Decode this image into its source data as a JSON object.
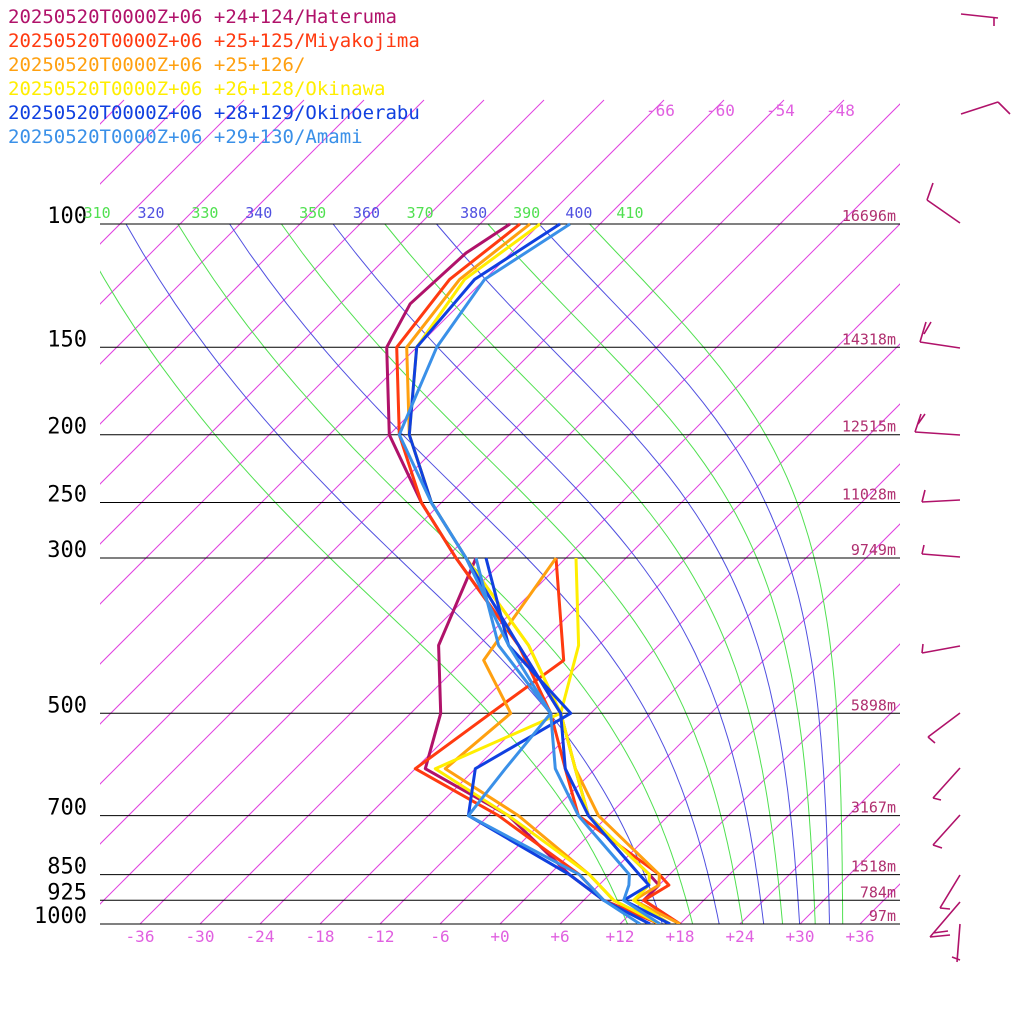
{
  "chart_data": {
    "type": "line",
    "pressure_levels": [
      100,
      150,
      200,
      250,
      300,
      500,
      700,
      850,
      925,
      1000
    ],
    "pressure_labels": [
      "100",
      "150",
      "200",
      "250",
      "300",
      "500",
      "700",
      "850",
      "925",
      "1000"
    ],
    "height_labels": [
      "16696m",
      "14318m",
      "12515m",
      "11028m",
      "9749m",
      "5898m",
      "3167m",
      "1518m",
      "784m",
      "97m"
    ],
    "x_tick_labels": [
      "-36",
      "-30",
      "-24",
      "-18",
      "-12",
      "-6",
      "+0",
      "+6",
      "+12",
      "+18",
      "+24",
      "+30",
      "+36"
    ],
    "x_ticks": [
      -36,
      -30,
      -24,
      -18,
      -12,
      -6,
      0,
      6,
      12,
      18,
      24,
      30,
      36
    ],
    "isotherm_labels": [
      "-66",
      "-60",
      "-54",
      "-48"
    ],
    "isotherms_top": [
      -66,
      -60,
      -54,
      -48
    ],
    "theta_e_labels": [
      "310",
      "320",
      "330",
      "340",
      "350",
      "360",
      "370",
      "380",
      "390",
      "400",
      "410"
    ],
    "theta_e": [
      310,
      320,
      330,
      340,
      350,
      360,
      370,
      380,
      390,
      400,
      410
    ],
    "xlim": [
      -40,
      40
    ],
    "y_scale": "log pressure",
    "series": [
      {
        "name": "20250520T0000Z+06 +24+124/Hateruma",
        "color": "#b0126a",
        "temperature": [
          [
            100,
            -69
          ],
          [
            110,
            -70.5
          ],
          [
            130,
            -71
          ],
          [
            150,
            -69
          ],
          [
            200,
            -60
          ],
          [
            250,
            -50
          ],
          [
            300,
            -41
          ],
          [
            400,
            -26
          ],
          [
            500,
            -15
          ],
          [
            600,
            -8
          ],
          [
            700,
            -2
          ],
          [
            850,
            10
          ],
          [
            880,
            12
          ],
          [
            925,
            12
          ],
          [
            1000,
            18
          ]
        ],
        "dewpoint": [
          [
            300,
            -39
          ],
          [
            400,
            -34
          ],
          [
            500,
            -27
          ],
          [
            600,
            -23
          ],
          [
            700,
            -10
          ],
          [
            850,
            2
          ],
          [
            925,
            8
          ],
          [
            1000,
            16
          ]
        ]
      },
      {
        "name": "20250520T0000Z+06 +25+125/Miyakojima",
        "color": "#ff3a10",
        "temperature": [
          [
            100,
            -68
          ],
          [
            120,
            -69.5
          ],
          [
            150,
            -68
          ],
          [
            200,
            -59
          ],
          [
            250,
            -50
          ],
          [
            300,
            -41
          ],
          [
            400,
            -26
          ],
          [
            500,
            -16
          ],
          [
            600,
            -9
          ],
          [
            700,
            -3
          ],
          [
            850,
            11
          ],
          [
            880,
            13
          ],
          [
            925,
            12
          ],
          [
            1000,
            18
          ]
        ],
        "dewpoint": [
          [
            300,
            -31
          ],
          [
            420,
            -20
          ],
          [
            500,
            -22
          ],
          [
            600,
            -24
          ],
          [
            700,
            -11
          ],
          [
            850,
            3
          ],
          [
            925,
            8
          ],
          [
            1000,
            16
          ]
        ]
      },
      {
        "name": "20250520T0000Z+06 +25+126/",
        "color": "#ffa010",
        "temperature": [
          [
            100,
            -67
          ],
          [
            120,
            -68.5
          ],
          [
            150,
            -67
          ],
          [
            200,
            -58
          ],
          [
            250,
            -49
          ],
          [
            300,
            -40
          ],
          [
            400,
            -25
          ],
          [
            500,
            -15
          ],
          [
            600,
            -8
          ],
          [
            700,
            -1
          ],
          [
            850,
            11
          ],
          [
            880,
            12
          ],
          [
            925,
            11
          ],
          [
            1000,
            18
          ]
        ],
        "dewpoint": [
          [
            300,
            -31
          ],
          [
            420,
            -28
          ],
          [
            500,
            -20
          ],
          [
            600,
            -21
          ],
          [
            700,
            -9
          ],
          [
            850,
            4
          ],
          [
            925,
            9
          ],
          [
            1000,
            16
          ]
        ]
      },
      {
        "name": "20250520T0000Z+06 +26+128/Okinawa",
        "color": "#ffee00",
        "temperature": [
          [
            100,
            -66
          ],
          [
            120,
            -68
          ],
          [
            150,
            -66
          ],
          [
            200,
            -58
          ],
          [
            250,
            -49
          ],
          [
            300,
            -40
          ],
          [
            400,
            -25
          ],
          [
            500,
            -15
          ],
          [
            600,
            -8
          ],
          [
            700,
            -2
          ],
          [
            850,
            10
          ],
          [
            880,
            11
          ],
          [
            925,
            11
          ],
          [
            1000,
            17
          ]
        ],
        "dewpoint": [
          [
            300,
            -29
          ],
          [
            400,
            -20
          ],
          [
            500,
            -15
          ],
          [
            600,
            -22
          ],
          [
            700,
            -10
          ],
          [
            850,
            4
          ],
          [
            925,
            9
          ],
          [
            1000,
            16
          ]
        ]
      },
      {
        "name": "20250520T0000Z+06 +28+129/Okinoerabu",
        "color": "#1040e0",
        "temperature": [
          [
            100,
            -64
          ],
          [
            120,
            -67
          ],
          [
            150,
            -66
          ],
          [
            200,
            -58
          ],
          [
            250,
            -49
          ],
          [
            300,
            -40
          ],
          [
            400,
            -26
          ],
          [
            500,
            -15
          ],
          [
            600,
            -9
          ],
          [
            700,
            -2
          ],
          [
            850,
            9
          ],
          [
            880,
            11
          ],
          [
            925,
            10
          ],
          [
            1000,
            17
          ]
        ],
        "dewpoint": [
          [
            300,
            -38
          ],
          [
            400,
            -27
          ],
          [
            500,
            -14
          ],
          [
            600,
            -18
          ],
          [
            700,
            -14
          ],
          [
            850,
            2
          ],
          [
            925,
            8
          ],
          [
            1000,
            15
          ]
        ]
      },
      {
        "name": "20250520T0000Z+06 +29+130/Amami",
        "color": "#3a90e8",
        "temperature": [
          [
            100,
            -63
          ],
          [
            120,
            -66
          ],
          [
            150,
            -64
          ],
          [
            200,
            -59
          ],
          [
            250,
            -49
          ],
          [
            300,
            -40
          ],
          [
            400,
            -27
          ],
          [
            500,
            -16
          ],
          [
            600,
            -10
          ],
          [
            700,
            -3
          ],
          [
            850,
            8
          ],
          [
            880,
            9
          ],
          [
            925,
            10
          ],
          [
            1000,
            16
          ]
        ],
        "dewpoint": [
          [
            300,
            -39
          ],
          [
            400,
            -28
          ],
          [
            500,
            -16
          ],
          [
            600,
            -15
          ],
          [
            700,
            -14
          ],
          [
            850,
            3
          ],
          [
            925,
            8
          ],
          [
            1000,
            14
          ]
        ]
      }
    ]
  }
}
